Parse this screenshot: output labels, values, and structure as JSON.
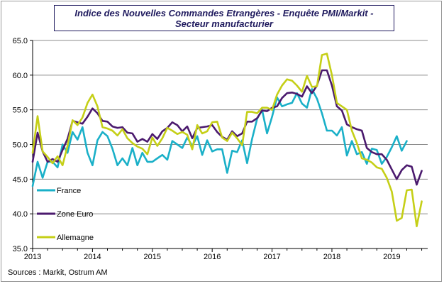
{
  "chart_data": {
    "type": "line",
    "title": "Indice des Nouvelles Commandes Etrangères - Enquête PMI/Markit - Secteur manufacturier",
    "xlabel": "",
    "ylabel": "",
    "ylim": [
      35.0,
      65.0
    ],
    "yticks": [
      "35.0",
      "40.0",
      "45.0",
      "50.0",
      "55.0",
      "60.0",
      "65.0"
    ],
    "xticks": [
      "2013",
      "2014",
      "2015",
      "2016",
      "2017",
      "2018",
      "2019"
    ],
    "x_start": 2013.0,
    "x_step_months": 1,
    "grid": "horizontal",
    "legend_position": "left, bottom half, inside plot",
    "series": [
      {
        "name": "France",
        "color": "#1ab0c8",
        "values": [
          44.0,
          47.5,
          45.2,
          47.5,
          47.5,
          46.7,
          50.0,
          48.8,
          51.8,
          50.7,
          52.5,
          48.8,
          47.0,
          50.6,
          51.8,
          51.2,
          49.4,
          47.0,
          48.0,
          47.0,
          49.5,
          47.0,
          48.8,
          47.5,
          47.5,
          48.0,
          48.5,
          47.8,
          50.5,
          50.0,
          49.5,
          51.0,
          49.8,
          51.2,
          48.5,
          50.6,
          49.0,
          49.3,
          49.3,
          45.9,
          49.1,
          48.9,
          50.6,
          47.3,
          50.8,
          53.7,
          55.0,
          51.6,
          54.0,
          56.8,
          55.5,
          55.8,
          56.0,
          57.4,
          55.9,
          55.3,
          58.0,
          56.6,
          54.5,
          52.0,
          52.0,
          51.3,
          52.5,
          48.4,
          50.5,
          48.6,
          48.9,
          47.2,
          49.4,
          49.2,
          47.2,
          48.2,
          49.6,
          51.2,
          49.1,
          50.5
        ]
      },
      {
        "name": "Zone Euro",
        "color": "#4b1a6e",
        "values": [
          47.5,
          51.7,
          49.0,
          47.5,
          47.9,
          47.5,
          49.2,
          50.8,
          53.4,
          53.2,
          53.0,
          54.0,
          55.2,
          54.5,
          53.4,
          53.3,
          52.6,
          52.4,
          52.5,
          51.7,
          51.6,
          50.4,
          50.8,
          50.4,
          51.5,
          50.8,
          51.9,
          52.4,
          53.2,
          52.8,
          51.9,
          52.6,
          50.9,
          52.4,
          52.5,
          52.6,
          52.8,
          51.8,
          51.1,
          50.7,
          51.9,
          51.2,
          51.6,
          53.3,
          53.3,
          53.8,
          54.9,
          54.8,
          55.3,
          55.5,
          56.7,
          57.4,
          57.5,
          57.3,
          56.9,
          58.4,
          57.4,
          58.5,
          60.7,
          60.7,
          58.5,
          55.5,
          54.9,
          52.9,
          52.5,
          52.2,
          52.0,
          49.5,
          48.9,
          48.6,
          48.6,
          47.8,
          46.4,
          45.0,
          46.3,
          47.0,
          46.8,
          44.2,
          46.2
        ]
      },
      {
        "name": "Allemagne",
        "color": "#c5cf17",
        "values": [
          48.8,
          54.1,
          49.0,
          48.2,
          47.3,
          48.3,
          47.0,
          49.8,
          53.5,
          52.8,
          53.9,
          56.0,
          57.2,
          55.5,
          52.5,
          52.3,
          52.0,
          51.3,
          52.2,
          50.9,
          50.2,
          49.7,
          49.4,
          48.6,
          51.0,
          49.8,
          50.9,
          52.4,
          52.0,
          51.5,
          51.8,
          51.4,
          49.3,
          52.8,
          51.6,
          51.9,
          53.2,
          53.3,
          51.0,
          50.5,
          51.7,
          50.9,
          49.9,
          54.7,
          54.7,
          54.5,
          55.3,
          55.3,
          55.0,
          57.2,
          58.5,
          59.4,
          59.2,
          58.5,
          57.6,
          59.9,
          58.3,
          58.4,
          62.9,
          63.1,
          60.0,
          56.0,
          55.5,
          55.0,
          52.0,
          50.2,
          48.0,
          47.8,
          47.4,
          46.7,
          46.5,
          45.2,
          43.2,
          39.0,
          39.4,
          43.4,
          43.5,
          38.2,
          41.8
        ]
      }
    ]
  },
  "source_note": "Sources : Markit, Ostrum AM"
}
